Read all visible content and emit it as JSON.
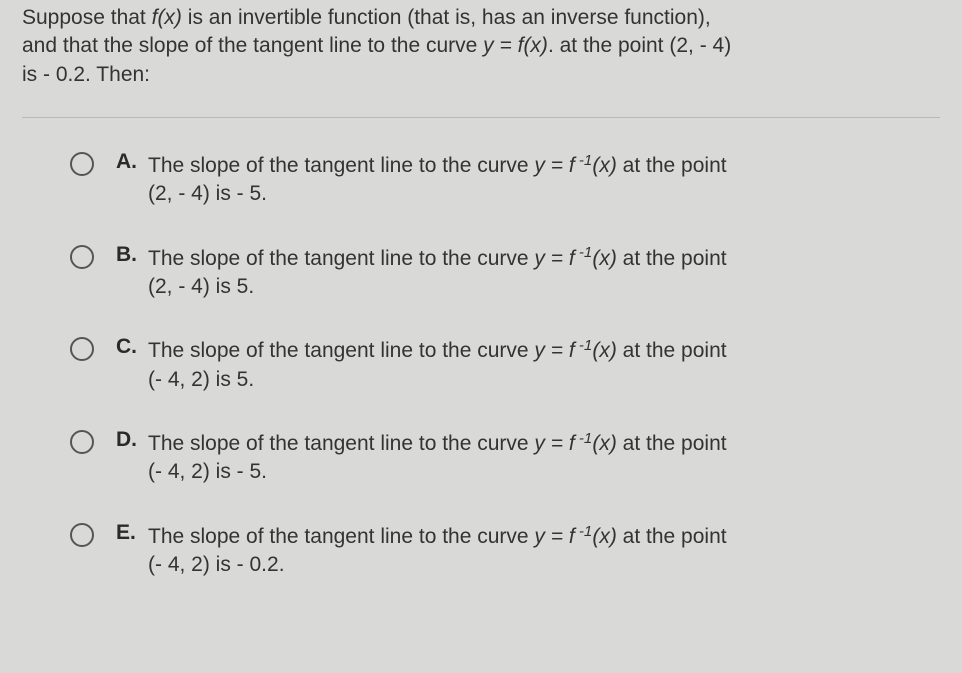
{
  "question": {
    "line1_pre": "Suppose that ",
    "fx": "f(x)",
    "line1_mid": " is an invertible function (that is, has an inverse function),",
    "line2_pre": "and that the slope of the tangent line to the curve  ",
    "yeq": "y = f(x)",
    "line2_post": ". at the point (2, - 4)",
    "line3": "is - 0.2. Then:"
  },
  "options": [
    {
      "letter": "A.",
      "pre": "The slope of the tangent line to the curve  ",
      "func_y": "y = f",
      "exp": " -1",
      "func_x": "(x)",
      "mid": " at the point",
      "second": "(2, - 4) is - 5."
    },
    {
      "letter": "B.",
      "pre": "The slope of the tangent line to the curve  ",
      "func_y": "y = f",
      "exp": " -1",
      "func_x": "(x)",
      "mid": " at the point",
      "second": "(2, - 4) is 5."
    },
    {
      "letter": "C.",
      "pre": "The slope of the tangent line to the curve  ",
      "func_y": "y = f",
      "exp": " -1",
      "func_x": "(x)",
      "mid": " at the point",
      "second": "(- 4, 2) is 5."
    },
    {
      "letter": "D.",
      "pre": "The slope of the tangent line to the curve  ",
      "func_y": "y = f",
      "exp": " -1",
      "func_x": "(x)",
      "mid": " at the point",
      "second": "(- 4, 2) is - 5."
    },
    {
      "letter": "E.",
      "pre": "The slope of the tangent line to the curve  ",
      "func_y": "y = f",
      "exp": " -1",
      "func_x": "(x)",
      "mid": " at the point",
      "second": "(- 4, 2) is - 0.2."
    }
  ]
}
